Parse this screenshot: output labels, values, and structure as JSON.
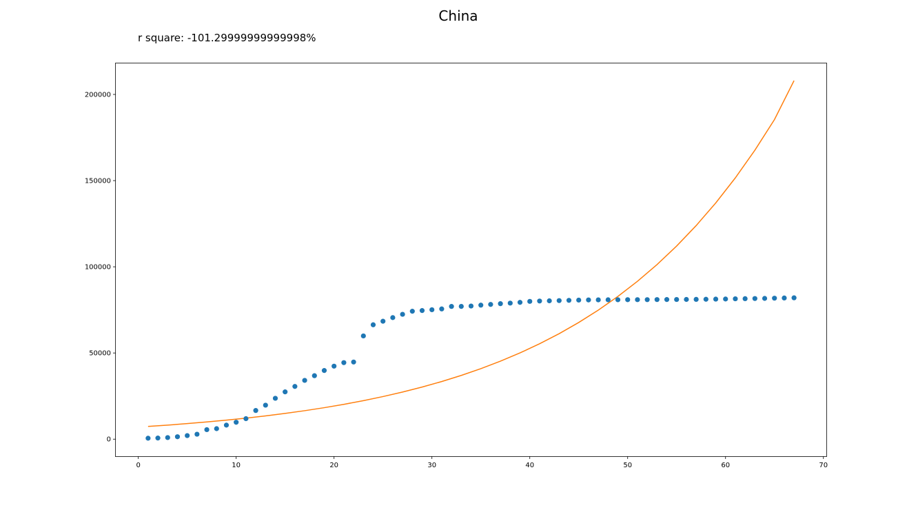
{
  "chart_data": {
    "type": "scatter",
    "title": "China",
    "subtitle": "r square: -101.29999999999998%",
    "xlabel": "",
    "ylabel": "",
    "xlim": [
      -2.3,
      70.3
    ],
    "ylim": [
      -9900,
      218000
    ],
    "xticks": [
      0,
      10,
      20,
      30,
      40,
      50,
      60,
      70
    ],
    "yticks": [
      0,
      50000,
      100000,
      150000,
      200000
    ],
    "grid": false,
    "colors": {
      "points": "#1f77b4",
      "fit": "#ff7f0e"
    },
    "series": [
      {
        "kind": "scatter",
        "x": [
          1,
          2,
          3,
          4,
          5,
          6,
          7,
          8,
          9,
          10,
          11,
          12,
          13,
          14,
          15,
          16,
          17,
          18,
          19,
          20,
          21,
          22,
          23,
          24,
          25,
          26,
          27,
          28,
          29,
          30,
          31,
          32,
          33,
          34,
          35,
          36,
          37,
          38,
          39,
          40,
          41,
          42,
          43,
          44,
          45,
          46,
          47,
          48,
          49,
          50,
          51,
          52,
          53,
          54,
          55,
          56,
          57,
          58,
          59,
          60,
          61,
          62,
          63,
          64,
          65,
          66,
          67
        ],
        "y": [
          548,
          643,
          920,
          1406,
          2075,
          2877,
          5509,
          6087,
          8141,
          9802,
          11891,
          16630,
          19716,
          23707,
          27440,
          30587,
          34110,
          36814,
          39829,
          42354,
          44386,
          44759,
          59895,
          66358,
          68413,
          70513,
          72434,
          74211,
          74619,
          75077,
          75550,
          77001,
          77022,
          77241,
          77754,
          78166,
          78600,
          78928,
          79356,
          79932,
          80136,
          80261,
          80386,
          80537,
          80690,
          80770,
          80823,
          80860,
          80887,
          80921,
          80932,
          80945,
          80977,
          81003,
          81033,
          81058,
          81102,
          81156,
          81250,
          81305,
          81435,
          81498,
          81591,
          81661,
          81782,
          81897,
          81999
        ]
      },
      {
        "kind": "line",
        "x": [
          1,
          3,
          5,
          7,
          9,
          11,
          13,
          15,
          17,
          19,
          21,
          23,
          25,
          27,
          29,
          31,
          33,
          35,
          37,
          39,
          41,
          43,
          45,
          47,
          49,
          51,
          53,
          55,
          57,
          59,
          61,
          63,
          65,
          67
        ],
        "y": [
          7374,
          8156,
          9021,
          9977,
          11035,
          12205,
          13499,
          14930,
          16513,
          18264,
          20200,
          22342,
          24711,
          27330,
          30228,
          33433,
          36978,
          40898,
          45234,
          50030,
          55334,
          61201,
          67689,
          74866,
          82803,
          91582,
          101292,
          112031,
          123908,
          137045,
          151575,
          167645,
          185419,
          208000
        ]
      }
    ]
  }
}
